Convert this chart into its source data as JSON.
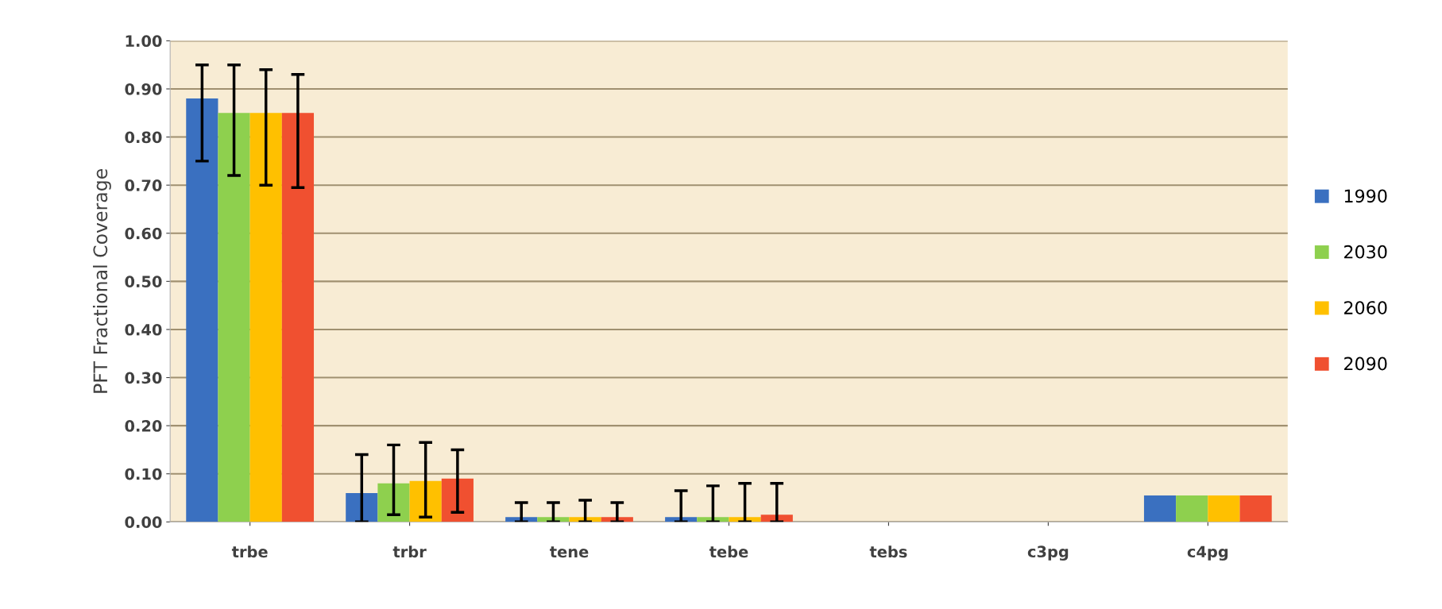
{
  "chart_data": {
    "type": "bar",
    "ylabel": "PFT Fractional Coverage",
    "categories": [
      "trbe",
      "trbr",
      "tene",
      "tebe",
      "tebs",
      "c3pg",
      "c4pg"
    ],
    "series": [
      {
        "name": "1990",
        "color": "#3a70c0",
        "values": [
          0.88,
          0.06,
          0.01,
          0.01,
          0,
          0,
          0.055
        ],
        "errors": [
          [
            0.75,
            0.95
          ],
          [
            0.0,
            0.14
          ],
          [
            0.0,
            0.04
          ],
          [
            0.0,
            0.065
          ],
          null,
          null,
          null
        ]
      },
      {
        "name": "2030",
        "color": "#8ed04e",
        "values": [
          0.85,
          0.08,
          0.01,
          0.01,
          0,
          0,
          0.055
        ],
        "errors": [
          [
            0.72,
            0.95
          ],
          [
            0.015,
            0.16
          ],
          [
            0.0,
            0.04
          ],
          [
            0.0,
            0.075
          ],
          null,
          null,
          null
        ]
      },
      {
        "name": "2060",
        "color": "#ffc000",
        "values": [
          0.85,
          0.085,
          0.01,
          0.01,
          0,
          0,
          0.055
        ],
        "errors": [
          [
            0.7,
            0.94
          ],
          [
            0.01,
            0.165
          ],
          [
            0.0,
            0.045
          ],
          [
            0.0,
            0.08
          ],
          null,
          null,
          null
        ]
      },
      {
        "name": "2090",
        "color": "#f05030",
        "values": [
          0.85,
          0.09,
          0.01,
          0.015,
          0,
          0,
          0.055
        ],
        "errors": [
          [
            0.695,
            0.93
          ],
          [
            0.02,
            0.15
          ],
          [
            0.0,
            0.04
          ],
          [
            0.0,
            0.08
          ],
          null,
          null,
          null
        ]
      }
    ],
    "ylim": [
      0,
      1
    ],
    "yticks": [
      {
        "value": 0,
        "label": "0.00"
      },
      {
        "value": 0.1,
        "label": "0.10"
      },
      {
        "value": 0.2,
        "label": "0.20"
      },
      {
        "value": 0.3,
        "label": "0.30"
      },
      {
        "value": 0.4,
        "label": "0.40"
      },
      {
        "value": 0.5,
        "label": "0.50"
      },
      {
        "value": 0.6,
        "label": "0.60"
      },
      {
        "value": 0.7,
        "label": "0.70"
      },
      {
        "value": 0.8,
        "label": "0.80"
      },
      {
        "value": 0.9,
        "label": "0.90"
      },
      {
        "value": 1.0,
        "label": "1.00"
      }
    ],
    "grid": "y",
    "legend": "right"
  }
}
